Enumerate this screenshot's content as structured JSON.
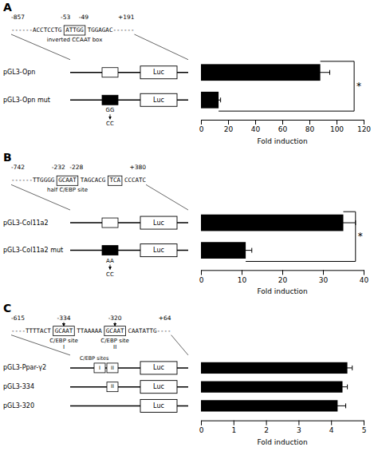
{
  "chart_data": [
    {
      "type": "bar",
      "orientation": "horizontal",
      "title": "A",
      "categories": [
        "pGL3-Opn",
        "pGL3-Opn mut"
      ],
      "values": [
        88,
        13
      ],
      "errors": [
        7,
        1.5
      ],
      "color": "black",
      "xlabel": "Fold induction",
      "xlim": [
        0,
        120
      ],
      "xticks": [
        0,
        20,
        40,
        60,
        80,
        100,
        120
      ],
      "significance": {
        "x": 113,
        "label": "*"
      },
      "annotations": {
        "positions": [
          "-857",
          "-53",
          "-49",
          "+191"
        ],
        "sequence": [
          "------ACCTCCTG",
          "ATTGG",
          "TGGAGAC------"
        ],
        "site_labels": [
          [
            "inverted CCAAT box"
          ]
        ],
        "mutation": [
          "GG",
          "CC"
        ],
        "reporter": "Luc"
      }
    },
    {
      "type": "bar",
      "orientation": "horizontal",
      "title": "B",
      "categories": [
        "pGL3-Col11a2",
        "pGL3-Col11a2 mut"
      ],
      "values": [
        35,
        11
      ],
      "errors": [
        3,
        1.5
      ],
      "color": "black",
      "xlabel": "Fold induction",
      "xlim": [
        0,
        40
      ],
      "xticks": [
        0,
        10,
        20,
        30,
        40
      ],
      "significance": {
        "x": 38,
        "label": "*"
      },
      "annotations": {
        "positions": [
          "-742",
          "-232",
          "-228",
          "+380"
        ],
        "sequence": [
          "------TTGGGG",
          "GCAAT",
          "TAGCACG",
          "TCA",
          "CCCATC"
        ],
        "site_labels": [
          [
            "half C/EBP site"
          ]
        ],
        "mutation": [
          "AA",
          "CC"
        ],
        "reporter": "Luc"
      }
    },
    {
      "type": "bar",
      "orientation": "horizontal",
      "title": "C",
      "categories": [
        "pGL3-Ppar-γ2",
        "pGL3-334",
        "pGL3-320"
      ],
      "values": [
        4.5,
        4.35,
        4.2
      ],
      "errors": [
        0.15,
        0.15,
        0.25
      ],
      "color": "black",
      "xlabel": "Fold induction",
      "xlim": [
        0,
        5
      ],
      "xticks": [
        0,
        1,
        2,
        3,
        4,
        5
      ],
      "annotations": {
        "positions": [
          "-615",
          "-334",
          "-320",
          "+64"
        ],
        "sequence": [
          "----TTTTACT",
          "GCAAT",
          "TTAAAAA",
          "GCAAT",
          "CAATATTG----"
        ],
        "site_labels": [
          [
            "C/EBP site",
            "I"
          ],
          [
            "C/EBP site",
            "II"
          ]
        ],
        "sites_label": "C/EBP sites",
        "construct_sites": [
          [
            "I",
            "II"
          ],
          [
            "II"
          ],
          []
        ],
        "reporter": "Luc"
      }
    }
  ]
}
